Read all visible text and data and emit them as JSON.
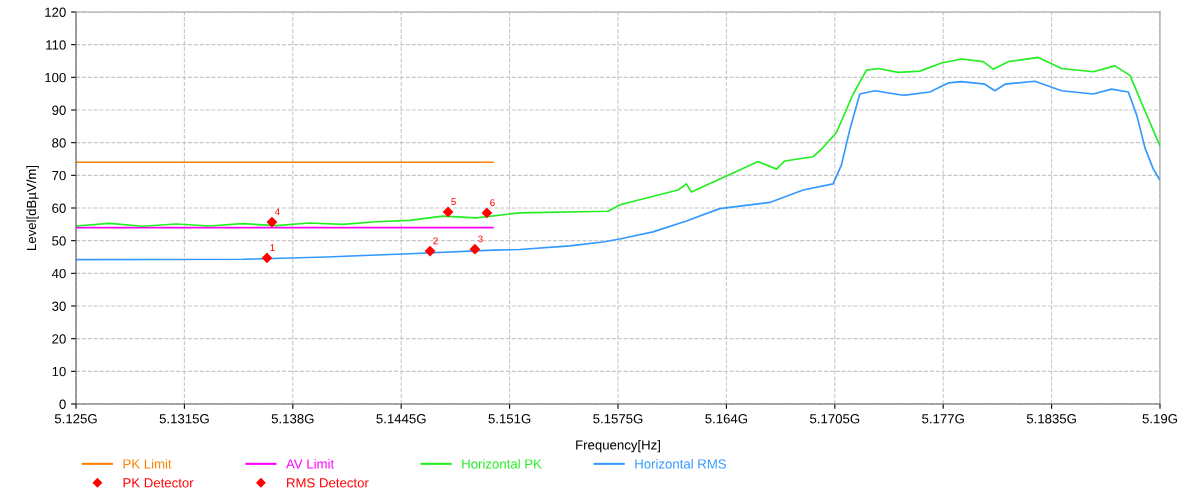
{
  "chart_data": {
    "type": "line",
    "xlabel": "Frequency[Hz]",
    "ylabel": "Level[dBµV/m]",
    "xlim": [
      5.125,
      5.19
    ],
    "ylim": [
      0,
      120
    ],
    "xticks": [
      {
        "value": 5.125,
        "label": "5.125G"
      },
      {
        "value": 5.1315,
        "label": "5.1315G"
      },
      {
        "value": 5.138,
        "label": "5.138G"
      },
      {
        "value": 5.1445,
        "label": "5.1445G"
      },
      {
        "value": 5.151,
        "label": "5.151G"
      },
      {
        "value": 5.1575,
        "label": "5.1575G"
      },
      {
        "value": 5.164,
        "label": "5.164G"
      },
      {
        "value": 5.1705,
        "label": "5.1705G"
      },
      {
        "value": 5.177,
        "label": "5.177G"
      },
      {
        "value": 5.1835,
        "label": "5.1835G"
      },
      {
        "value": 5.19,
        "label": "5.19G"
      }
    ],
    "yticks": [
      0,
      10,
      20,
      30,
      40,
      50,
      60,
      70,
      80,
      90,
      100,
      110,
      120
    ],
    "grid": true,
    "legend": "bottom",
    "series": [
      {
        "name": "PK Limit",
        "color": "#ff8000",
        "x": [
          5.125,
          5.15
        ],
        "values": [
          74,
          74
        ]
      },
      {
        "name": "AV Limit",
        "color": "#ff00ff",
        "x": [
          5.125,
          5.15
        ],
        "values": [
          54,
          54
        ]
      },
      {
        "name": "Horizontal PK",
        "color": "#22ee22",
        "x": [
          5.125,
          5.127,
          5.129,
          5.131,
          5.133,
          5.135,
          5.137,
          5.139,
          5.141,
          5.143,
          5.145,
          5.147,
          5.149,
          5.1516,
          5.1569,
          5.15762,
          5.1611,
          5.1616,
          5.1619,
          5.1644,
          5.1659,
          5.167,
          5.1675,
          5.1692,
          5.1697,
          5.1706,
          5.1716,
          5.1724,
          5.1731,
          5.1743,
          5.1756,
          5.1769,
          5.1781,
          5.1794,
          5.18,
          5.1809,
          5.1827,
          5.1841,
          5.186,
          5.1873,
          5.1882,
          5.1891,
          5.19
        ],
        "values": [
          54.5,
          55.3,
          54.4,
          55.1,
          54.5,
          55.2,
          54.6,
          55.4,
          55,
          55.8,
          56.2,
          57.5,
          57,
          58.5,
          59,
          61,
          65.5,
          67.4,
          64.9,
          70.7,
          74.2,
          71.9,
          74.4,
          75.7,
          78,
          83.1,
          94.9,
          102.2,
          102.7,
          101.5,
          101.9,
          104.4,
          105.6,
          104.8,
          102.5,
          104.8,
          106.1,
          102.7,
          101.7,
          103.5,
          100.6,
          89.7,
          79
        ]
      },
      {
        "name": "Horizontal RMS",
        "color": "#3399ff",
        "x": [
          5.125,
          5.135,
          5.14,
          5.145,
          5.15,
          5.1516,
          5.1546,
          5.1566,
          5.1576,
          5.1596,
          5.1616,
          5.1636,
          5.1666,
          5.1686,
          5.1704,
          5.1709,
          5.1714,
          5.172,
          5.1729,
          5.1746,
          5.1762,
          5.1773,
          5.1781,
          5.1795,
          5.1801,
          5.1807,
          5.1825,
          5.1841,
          5.186,
          5.1871,
          5.1881,
          5.1886,
          5.1891,
          5.1896,
          5.19
        ],
        "values": [
          44.2,
          44.3,
          45,
          46,
          47.1,
          47.3,
          48.4,
          49.6,
          50.5,
          52.7,
          56,
          59.8,
          61.7,
          65.5,
          67.4,
          73.2,
          84,
          94.9,
          95.9,
          94.5,
          95.5,
          98.3,
          98.7,
          97.9,
          95.9,
          97.9,
          98.8,
          95.9,
          94.9,
          96.4,
          95.5,
          88.5,
          78.4,
          71.9,
          68.5
        ]
      },
      {
        "name": "PK Detector",
        "type": "scatter",
        "marker": "diamond",
        "color": "#ff0000",
        "x": [
          5.13675,
          5.14731,
          5.14964
        ],
        "values": [
          55.7,
          58.8,
          58.5
        ]
      },
      {
        "name": "RMS Detector",
        "type": "scatter",
        "marker": "diamond",
        "color": "#ff0000",
        "x": [
          5.13645,
          5.14623,
          5.14892
        ],
        "values": [
          44.7,
          46.8,
          47.4
        ]
      }
    ],
    "annotations": [
      {
        "text": "1",
        "x": 5.13645,
        "y": 44.7
      },
      {
        "text": "2",
        "x": 5.14623,
        "y": 46.8
      },
      {
        "text": "3",
        "x": 5.14892,
        "y": 47.4
      },
      {
        "text": "4",
        "x": 5.13675,
        "y": 55.7
      },
      {
        "text": "5",
        "x": 5.14731,
        "y": 58.8
      },
      {
        "text": "6",
        "x": 5.14964,
        "y": 58.5
      }
    ]
  }
}
